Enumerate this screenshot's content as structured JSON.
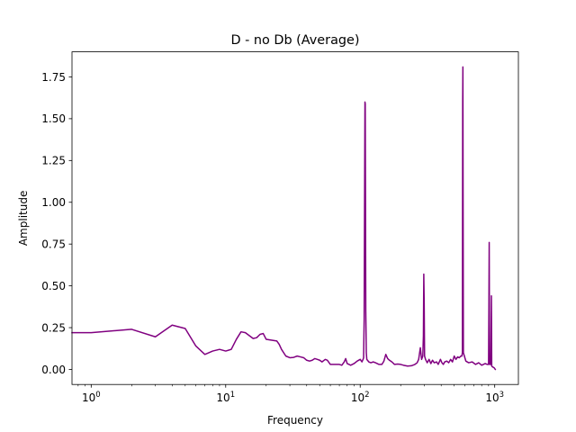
{
  "chart_data": {
    "type": "line",
    "title": "D - no Db  (Average)",
    "xlabel": "Frequency",
    "ylabel": "Amplitude",
    "xscale": "log",
    "xlim": [
      0.72,
      1500
    ],
    "ylim": [
      -0.09,
      1.9
    ],
    "grid": false,
    "x_ticks": [
      {
        "value": 1,
        "base": "10",
        "exp": "0"
      },
      {
        "value": 10,
        "base": "10",
        "exp": "1"
      },
      {
        "value": 100,
        "base": "10",
        "exp": "2"
      },
      {
        "value": 1000,
        "base": "10",
        "exp": "3"
      }
    ],
    "y_ticks": [
      {
        "value": 0.0,
        "label": "0.00"
      },
      {
        "value": 0.25,
        "label": "0.25"
      },
      {
        "value": 0.5,
        "label": "0.50"
      },
      {
        "value": 0.75,
        "label": "0.75"
      },
      {
        "value": 1.0,
        "label": "1.00"
      },
      {
        "value": 1.25,
        "label": "1.25"
      },
      {
        "value": 1.5,
        "label": "1.50"
      },
      {
        "value": 1.75,
        "label": "1.75"
      }
    ],
    "series": [
      {
        "color": "#800080",
        "points": [
          [
            0.72,
            0.22
          ],
          [
            1,
            0.22
          ],
          [
            2,
            0.24
          ],
          [
            3,
            0.195
          ],
          [
            4,
            0.265
          ],
          [
            5,
            0.245
          ],
          [
            6,
            0.14
          ],
          [
            7,
            0.09
          ],
          [
            8,
            0.11
          ],
          [
            9,
            0.12
          ],
          [
            10,
            0.11
          ],
          [
            11,
            0.12
          ],
          [
            12,
            0.18
          ],
          [
            13,
            0.225
          ],
          [
            14,
            0.22
          ],
          [
            16,
            0.185
          ],
          [
            17,
            0.19
          ],
          [
            18,
            0.21
          ],
          [
            19,
            0.215
          ],
          [
            20,
            0.18
          ],
          [
            22,
            0.175
          ],
          [
            24,
            0.17
          ],
          [
            25,
            0.15
          ],
          [
            26,
            0.12
          ],
          [
            28,
            0.08
          ],
          [
            30,
            0.07
          ],
          [
            32,
            0.072
          ],
          [
            34,
            0.08
          ],
          [
            36,
            0.075
          ],
          [
            38,
            0.07
          ],
          [
            40,
            0.055
          ],
          [
            42,
            0.05
          ],
          [
            44,
            0.055
          ],
          [
            46,
            0.065
          ],
          [
            48,
            0.06
          ],
          [
            50,
            0.055
          ],
          [
            52,
            0.045
          ],
          [
            55,
            0.06
          ],
          [
            57,
            0.055
          ],
          [
            60,
            0.03
          ],
          [
            65,
            0.03
          ],
          [
            70,
            0.03
          ],
          [
            73,
            0.025
          ],
          [
            76,
            0.045
          ],
          [
            78,
            0.065
          ],
          [
            80,
            0.035
          ],
          [
            85,
            0.025
          ],
          [
            90,
            0.035
          ],
          [
            95,
            0.05
          ],
          [
            100,
            0.06
          ],
          [
            103,
            0.045
          ],
          [
            105,
            0.06
          ],
          [
            106,
            0.07
          ],
          [
            107,
            0.3
          ],
          [
            108,
            1.2
          ],
          [
            108.5,
            1.6
          ],
          [
            109,
            1.59
          ],
          [
            109.5,
            1.0
          ],
          [
            110,
            0.35
          ],
          [
            111,
            0.1
          ],
          [
            112,
            0.06
          ],
          [
            116,
            0.045
          ],
          [
            120,
            0.04
          ],
          [
            125,
            0.045
          ],
          [
            130,
            0.04
          ],
          [
            138,
            0.03
          ],
          [
            145,
            0.03
          ],
          [
            150,
            0.05
          ],
          [
            155,
            0.09
          ],
          [
            160,
            0.065
          ],
          [
            165,
            0.055
          ],
          [
            172,
            0.045
          ],
          [
            180,
            0.03
          ],
          [
            190,
            0.032
          ],
          [
            200,
            0.03
          ],
          [
            210,
            0.025
          ],
          [
            225,
            0.02
          ],
          [
            240,
            0.022
          ],
          [
            255,
            0.03
          ],
          [
            265,
            0.04
          ],
          [
            272,
            0.06
          ],
          [
            280,
            0.13
          ],
          [
            286,
            0.06
          ],
          [
            292,
            0.08
          ],
          [
            295,
            0.2
          ],
          [
            297,
            0.57
          ],
          [
            299,
            0.4
          ],
          [
            301,
            0.08
          ],
          [
            306,
            0.06
          ],
          [
            315,
            0.04
          ],
          [
            325,
            0.06
          ],
          [
            335,
            0.035
          ],
          [
            345,
            0.055
          ],
          [
            355,
            0.04
          ],
          [
            370,
            0.045
          ],
          [
            380,
            0.03
          ],
          [
            395,
            0.06
          ],
          [
            405,
            0.04
          ],
          [
            415,
            0.03
          ],
          [
            425,
            0.045
          ],
          [
            440,
            0.05
          ],
          [
            455,
            0.04
          ],
          [
            470,
            0.06
          ],
          [
            485,
            0.045
          ],
          [
            500,
            0.08
          ],
          [
            515,
            0.06
          ],
          [
            530,
            0.075
          ],
          [
            545,
            0.07
          ],
          [
            560,
            0.08
          ],
          [
            570,
            0.08
          ],
          [
            575,
            0.1
          ],
          [
            578,
            1.6
          ],
          [
            580,
            1.81
          ],
          [
            582,
            1.05
          ],
          [
            585,
            0.1
          ],
          [
            595,
            0.08
          ],
          [
            610,
            0.05
          ],
          [
            640,
            0.04
          ],
          [
            680,
            0.045
          ],
          [
            720,
            0.03
          ],
          [
            760,
            0.04
          ],
          [
            800,
            0.025
          ],
          [
            850,
            0.035
          ],
          [
            880,
            0.03
          ],
          [
            900,
            0.03
          ],
          [
            905,
            0.35
          ],
          [
            910,
            0.76
          ],
          [
            915,
            0.03
          ],
          [
            935,
            0.03
          ],
          [
            945,
            0.44
          ],
          [
            950,
            0.02
          ],
          [
            965,
            0.015
          ],
          [
            990,
            0.01
          ],
          [
            1010,
            0.0
          ]
        ]
      }
    ]
  }
}
